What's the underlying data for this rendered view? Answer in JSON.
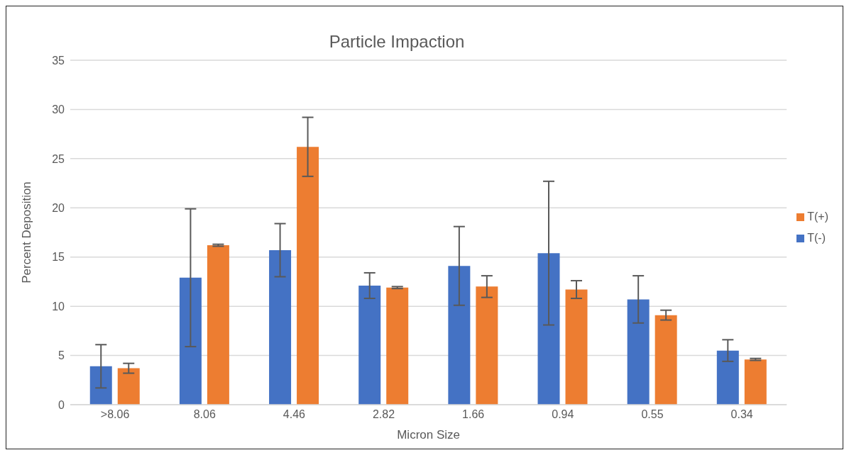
{
  "chart_data": {
    "type": "bar",
    "title": "Particle Impaction",
    "xlabel": "Micron Size",
    "ylabel": "Percent Deposition",
    "categories": [
      ">8.06",
      "8.06",
      "4.46",
      "2.82",
      "1.66",
      "0.94",
      "0.55",
      "0.34"
    ],
    "series": [
      {
        "name": "T(-)",
        "color": "#4472c4",
        "values": [
          3.9,
          12.9,
          15.7,
          12.1,
          14.1,
          15.4,
          10.7,
          5.5
        ],
        "errors": [
          2.2,
          7.0,
          2.7,
          1.3,
          4.0,
          7.3,
          2.4,
          1.1
        ]
      },
      {
        "name": "T(+)",
        "color": "#ed7d31",
        "values": [
          3.7,
          16.2,
          26.2,
          11.9,
          12.0,
          11.7,
          9.1,
          4.6
        ],
        "errors": [
          0.5,
          0.1,
          3.0,
          0.1,
          1.1,
          0.9,
          0.5,
          0.1
        ]
      }
    ],
    "ylim": [
      0,
      35
    ],
    "yticks": [
      0,
      5,
      10,
      15,
      20,
      25,
      30,
      35
    ],
    "grid": "y",
    "legend": "right"
  }
}
